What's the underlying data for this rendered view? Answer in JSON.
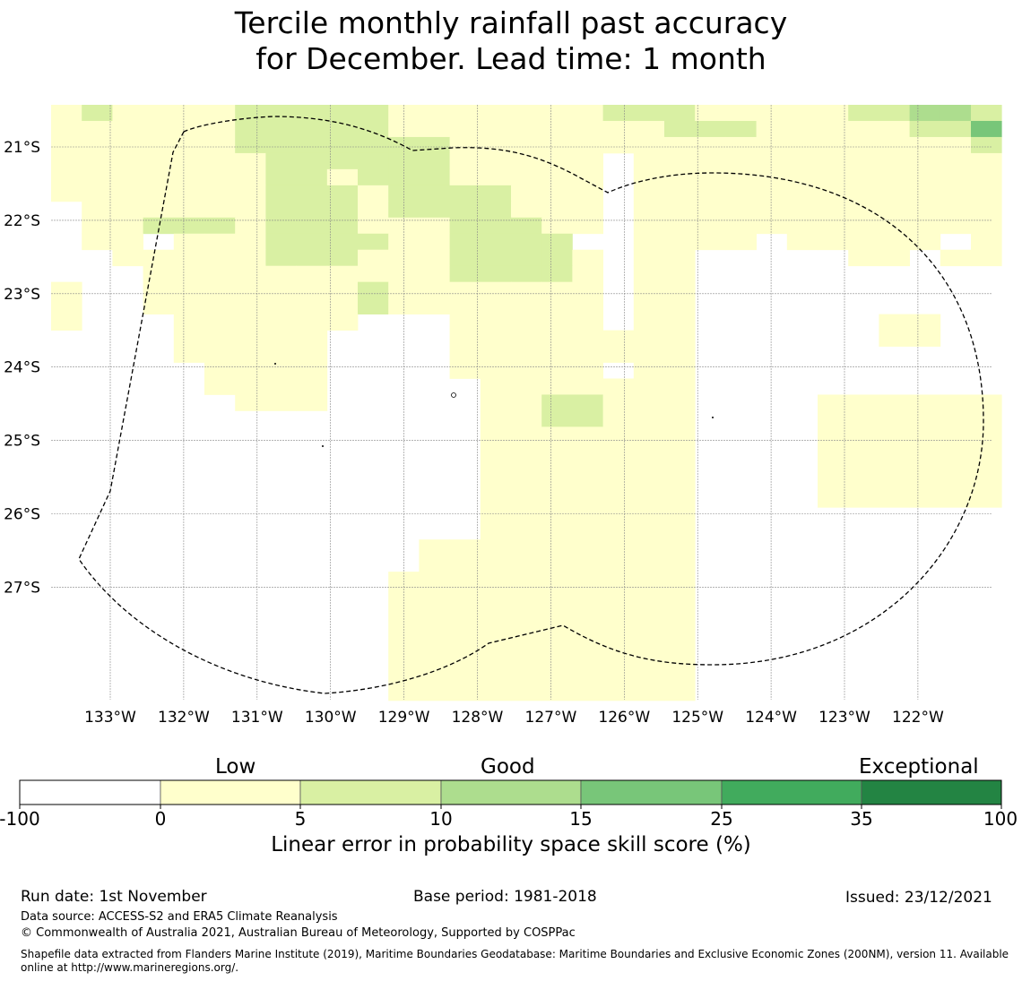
{
  "title": {
    "line1": "Tercile monthly rainfall past accuracy",
    "line2": "for December. Lead time: 1 month"
  },
  "map": {
    "lat_labels": [
      "21°S",
      "22°S",
      "23°S",
      "24°S",
      "25°S",
      "26°S",
      "27°S"
    ],
    "lon_labels": [
      "133°W",
      "132°W",
      "131°W",
      "130°W",
      "129°W",
      "128°W",
      "127°W",
      "126°W",
      "125°W",
      "124°W",
      "123°W",
      "122°W"
    ],
    "category_colors": [
      "#ffffff",
      "#ffffcc",
      "#d9f0a3",
      "#addd8e",
      "#78c679",
      "#41ab5d",
      "#238443"
    ],
    "grid_rows": [
      "1211112222211111112221111122332",
      "1111112222211111111122211111224",
      "1111112222222111111111111111112",
      "1111111222222111110111111111111",
      "1111111221222111110111111111111",
      "1111111222122221110111111111111",
      "0111111222122221110111111111111",
      "0112221222111222110111111111111",
      "0110111222211222200111101111101",
      "0011111222111222210110000011011",
      "0001111111111222210110000000000",
      "1001111111211111110110000000000",
      "1001111111211111110110000000000",
      "1000111111000111110110000001100",
      "0000111110000111111110000001100",
      "0000111110000111111110000000000",
      "0000011110000111110110000000000",
      "0000011110000011111110000000000",
      "0000001110000011221110000111111",
      "0000000000000011221110000111111",
      "0000000000000011111110000111111",
      "0000000000000011111110000111111",
      "0000000000000011111110000111111",
      "0000000000000011111110000111111",
      "0000000000000011111110000111111",
      "0000000000000011111110000000000",
      "0000000000000011111110000000000",
      "0000000000001111111110000000000",
      "0000000000001111111110000000000",
      "0000000000011111111110000000000",
      "0000000000011111111110000000000",
      "0000000000011111111110000000000",
      "0000000000011111111110000000000",
      "0000000000011111111110000000000",
      "0000000000011111111110000000000",
      "0000000000011111111110000000000",
      "0000000000011111111110000000000"
    ]
  },
  "colorbar": {
    "words": [
      "Low",
      "Good",
      "Exceptional"
    ],
    "ticks": [
      "-100",
      "0",
      "5",
      "10",
      "15",
      "25",
      "35",
      "100"
    ],
    "label": "Linear error in probability space skill score (%)"
  },
  "footer": {
    "run_date": "Run date: 1st November",
    "base_period": "Base period: 1981-2018",
    "issued": "Issued: 23/12/2021",
    "data_source": "Data source: ACCESS-S2 and ERA5 Climate Reanalysis",
    "copyright": "© Commonwealth of Australia 2021, Australian Bureau of Meteorology, Supported by COSPPac",
    "shapefile_line1": "Shapefile data extracted from Flanders Marine Institute (2019), Maritime Boundaries Geodatabase: Maritime Boundaries and Exclusive Economic Zones (200NM), version 11. Available",
    "shapefile_line2": "online at http://www.marineregions.org/."
  }
}
